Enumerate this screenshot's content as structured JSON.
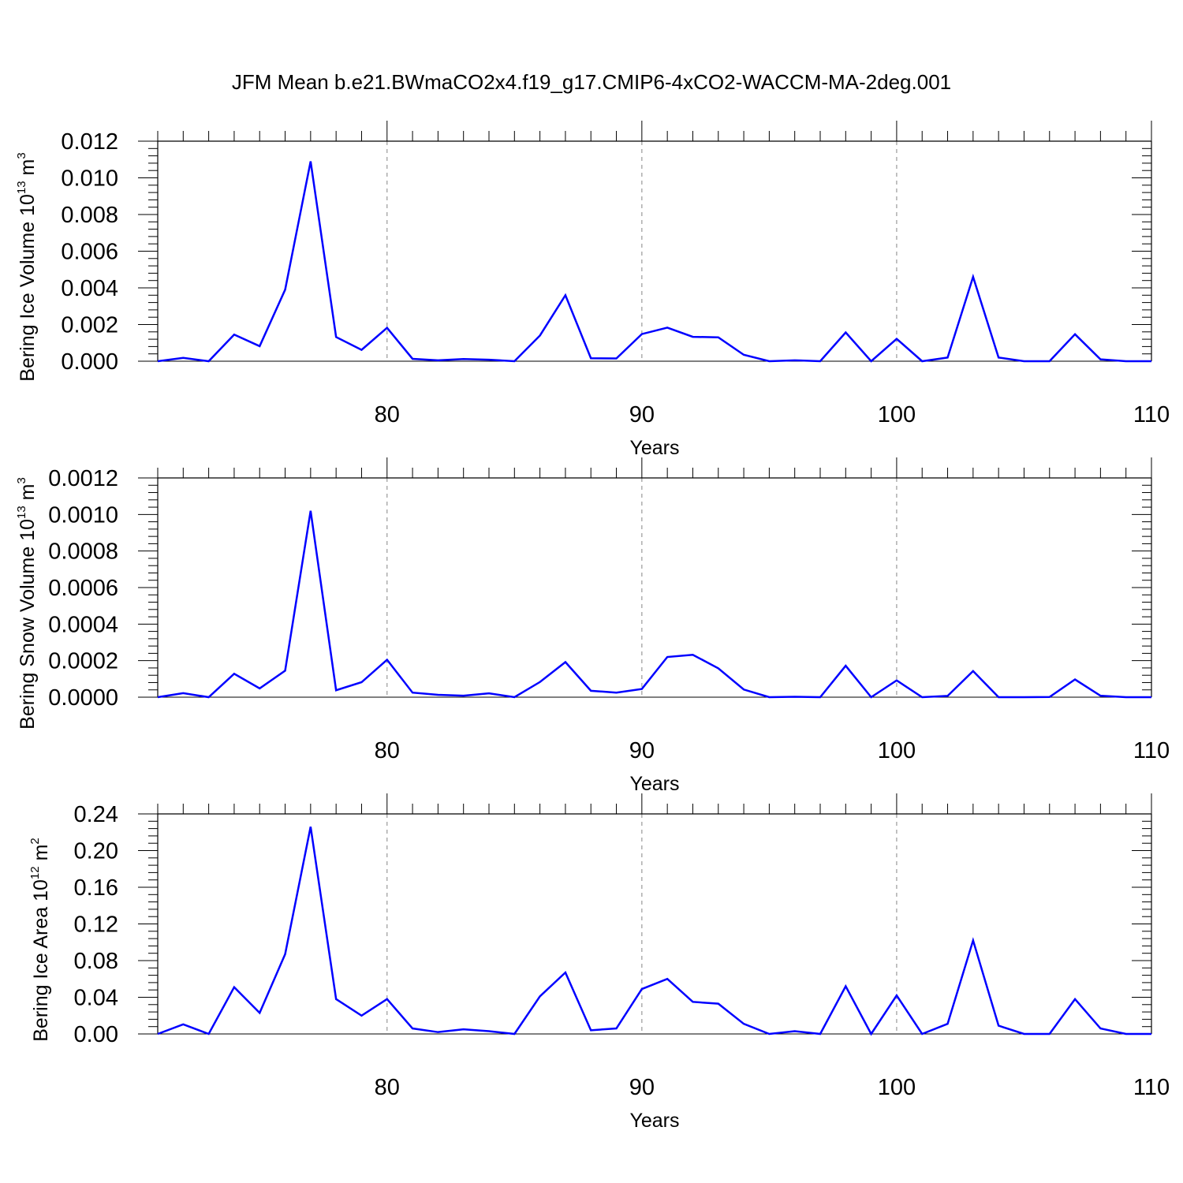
{
  "title": "JFM Mean b.e21.BWmaCO2x4.f19_g17.CMIP6-4xCO2-WACCM-MA-2deg.001",
  "chart_data": [
    {
      "type": "line",
      "title": "JFM Mean b.e21.BWmaCO2x4.f19_g17.CMIP6-4xCO2-WACCM-MA-2deg.001",
      "xlabel": "Years",
      "ylabel": {
        "base": "Bering Ice Volume 10",
        "exp": "13",
        "unit": "m",
        "unit_exp": "3"
      },
      "xlim": [
        71,
        110
      ],
      "ylim": [
        0,
        0.012
      ],
      "x_ticks": [
        80,
        90,
        100,
        110
      ],
      "x_tick_labels": [
        "80",
        "90",
        "100",
        "110"
      ],
      "y_ticks": [
        0,
        0.002,
        0.004,
        0.006,
        0.008,
        0.01,
        0.012
      ],
      "y_tick_labels": [
        "0.000",
        "0.002",
        "0.004",
        "0.006",
        "0.008",
        "0.010",
        "0.012"
      ],
      "color": "#0000ff",
      "series": [
        {
          "name": "Bering Ice Volume",
          "x": [
            71,
            72,
            73,
            74,
            75,
            76,
            77,
            78,
            79,
            80,
            81,
            82,
            83,
            84,
            85,
            86,
            87,
            88,
            89,
            90,
            91,
            92,
            93,
            94,
            95,
            96,
            97,
            98,
            99,
            100,
            101,
            102,
            103,
            104,
            105,
            106,
            107,
            108,
            109,
            110
          ],
          "values": [
            0.0,
            0.00018,
            0.0,
            0.00145,
            0.00082,
            0.0039,
            0.0109,
            0.00132,
            0.00062,
            0.00182,
            0.00013,
            5e-05,
            0.00012,
            8e-05,
            0.0,
            0.0014,
            0.0036,
            0.00016,
            0.00015,
            0.00148,
            0.00183,
            0.00133,
            0.0013,
            0.00035,
            0.0,
            5e-05,
            0.0,
            0.00157,
            0.0,
            0.00122,
            0.0,
            0.0002,
            0.0046,
            0.0002,
            0.0,
            0.0,
            0.00147,
            0.0001,
            0.0,
            0.0
          ]
        }
      ]
    },
    {
      "type": "line",
      "xlabel": "Years",
      "ylabel": {
        "base": "Bering Snow Volume 10",
        "exp": "13",
        "unit": "m",
        "unit_exp": "3"
      },
      "xlim": [
        71,
        110
      ],
      "ylim": [
        0,
        0.0012
      ],
      "x_ticks": [
        80,
        90,
        100,
        110
      ],
      "x_tick_labels": [
        "80",
        "90",
        "100",
        "110"
      ],
      "y_ticks": [
        0,
        0.0002,
        0.0004,
        0.0006,
        0.0008,
        0.001,
        0.0012
      ],
      "y_tick_labels": [
        "0.0000",
        "0.0002",
        "0.0004",
        "0.0006",
        "0.0008",
        "0.0010",
        "0.0012"
      ],
      "color": "#0000ff",
      "series": [
        {
          "name": "Bering Snow Volume",
          "x": [
            71,
            72,
            73,
            74,
            75,
            76,
            77,
            78,
            79,
            80,
            81,
            82,
            83,
            84,
            85,
            86,
            87,
            88,
            89,
            90,
            91,
            92,
            93,
            94,
            95,
            96,
            97,
            98,
            99,
            100,
            101,
            102,
            103,
            104,
            105,
            106,
            107,
            108,
            109,
            110
          ],
          "values": [
            0.0,
            2.2e-05,
            0.0,
            0.000128,
            4.8e-05,
            0.000145,
            0.00102,
            3.8e-05,
            8.2e-05,
            0.000205,
            2.5e-05,
            1.3e-05,
            8e-06,
            2.1e-05,
            0.0,
            8.3e-05,
            0.000192,
            3.5e-05,
            2.5e-05,
            4.5e-05,
            0.00022,
            0.000232,
            0.000158,
            4.2e-05,
            0.0,
            2e-06,
            0.0,
            0.000172,
            0.0,
            9.2e-05,
            0.0,
            7e-06,
            0.000143,
            0.0,
            0.0,
            1e-06,
            9.7e-05,
            8e-06,
            0.0,
            0.0
          ]
        }
      ]
    },
    {
      "type": "line",
      "xlabel": "Years",
      "ylabel": {
        "base": "Bering Ice Area 10",
        "exp": "12",
        "unit": "m",
        "unit_exp": "2"
      },
      "xlim": [
        71,
        110
      ],
      "ylim": [
        0,
        0.24
      ],
      "x_ticks": [
        80,
        90,
        100,
        110
      ],
      "x_tick_labels": [
        "80",
        "90",
        "100",
        "110"
      ],
      "y_ticks": [
        0,
        0.04,
        0.08,
        0.12,
        0.16,
        0.2,
        0.24
      ],
      "y_tick_labels": [
        "0.00",
        "0.04",
        "0.08",
        "0.12",
        "0.16",
        "0.20",
        "0.24"
      ],
      "color": "#0000ff",
      "series": [
        {
          "name": "Bering Ice Area",
          "x": [
            71,
            72,
            73,
            74,
            75,
            76,
            77,
            78,
            79,
            80,
            81,
            82,
            83,
            84,
            85,
            86,
            87,
            88,
            89,
            90,
            91,
            92,
            93,
            94,
            95,
            96,
            97,
            98,
            99,
            100,
            101,
            102,
            103,
            104,
            105,
            106,
            107,
            108,
            109,
            110
          ],
          "values": [
            0.0,
            0.0105,
            0.0,
            0.051,
            0.023,
            0.087,
            0.226,
            0.038,
            0.02,
            0.038,
            0.006,
            0.002,
            0.005,
            0.003,
            0.0,
            0.041,
            0.067,
            0.004,
            0.006,
            0.049,
            0.06,
            0.035,
            0.033,
            0.011,
            0.0,
            0.003,
            0.0,
            0.052,
            0.0,
            0.042,
            0.0,
            0.011,
            0.102,
            0.009,
            0.0,
            0.0,
            0.038,
            0.006,
            0.0,
            0.0
          ]
        }
      ]
    }
  ]
}
